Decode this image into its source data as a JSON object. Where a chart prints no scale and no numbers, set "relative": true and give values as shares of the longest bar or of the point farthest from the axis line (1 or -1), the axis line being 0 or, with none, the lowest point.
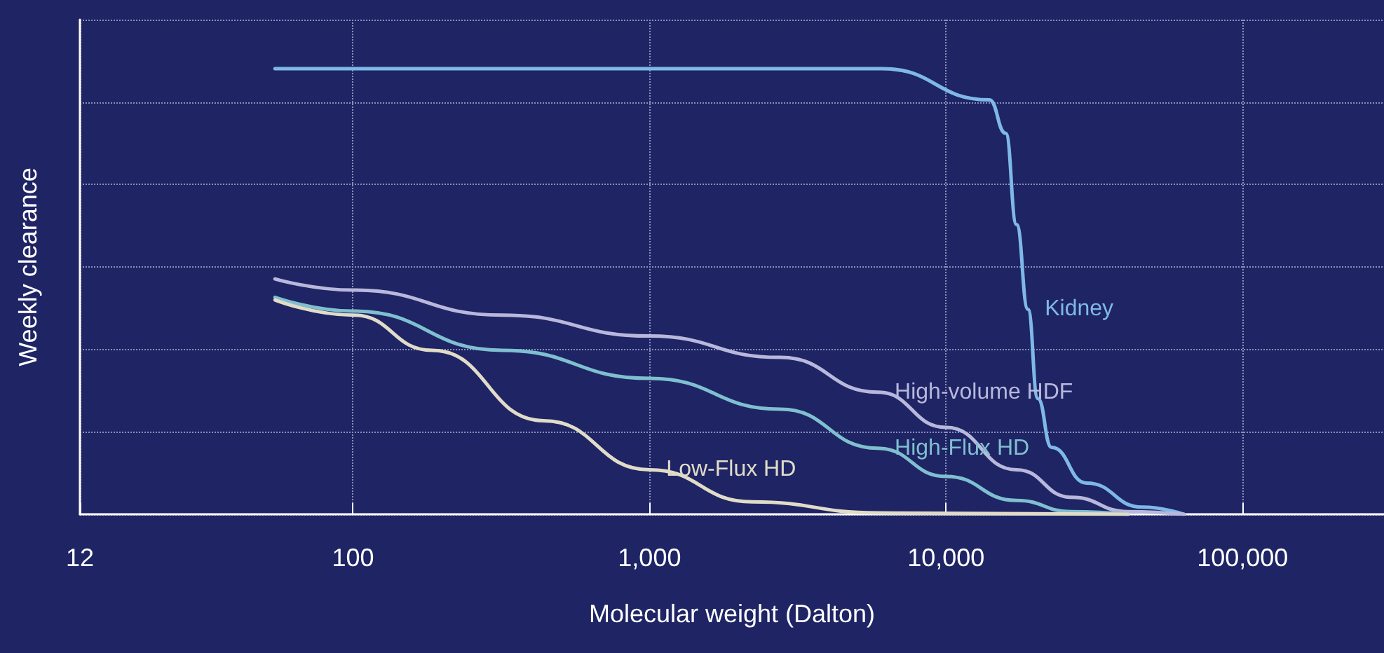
{
  "chart_data": {
    "type": "line",
    "xlabel": "Molecular weight (Dalton)",
    "ylabel": "Weekly clearance",
    "relative": true,
    "log": "x",
    "grid": true,
    "tick_labels": "x",
    "marker": "none",
    "line_style": "solid",
    "xlim": [
      12,
      300000
    ],
    "xticks": [
      12,
      {
        "value": 100,
        "label": "100"
      },
      {
        "value": 1000,
        "label": "1,000"
      },
      {
        "value": 10000,
        "label": "10,000"
      },
      {
        "value": 100000,
        "label": "100,000"
      }
    ],
    "series": [
      {
        "name": "Kidney",
        "color": "#7fb8e8",
        "x": [
          54.6,
          6080,
          14000,
          15900,
          17300,
          18900,
          20400,
          22700,
          29800,
          45900,
          63500
        ],
        "values": [
          1,
          1,
          0.93,
          0.855,
          0.65,
          0.46,
          0.26,
          0.15,
          0.07,
          0.016,
          0
        ]
      },
      {
        "name": "High-volume HDF",
        "color": "#b8b8dc",
        "x": [
          54.6,
          100,
          318,
          1000,
          2760,
          5890,
          10000,
          17300,
          26500,
          41100,
          63500
        ],
        "values": [
          0.528,
          0.503,
          0.447,
          0.4,
          0.352,
          0.274,
          0.195,
          0.1,
          0.038,
          0.006,
          0
        ]
      },
      {
        "name": "High-Flux HD",
        "color": "#7fbfcf",
        "x": [
          54.6,
          100,
          318,
          1000,
          2760,
          5890,
          10000,
          17300,
          26500,
          41100
        ],
        "values": [
          0.487,
          0.456,
          0.368,
          0.305,
          0.236,
          0.148,
          0.085,
          0.031,
          0.006,
          0
        ]
      },
      {
        "name": "Low-Flux HD",
        "color": "#e0dcc8",
        "x": [
          54.6,
          100,
          185,
          440,
          1000,
          2220,
          5890,
          41100
        ],
        "values": [
          0.481,
          0.447,
          0.368,
          0.21,
          0.1,
          0.028,
          0.003,
          0
        ]
      }
    ]
  }
}
